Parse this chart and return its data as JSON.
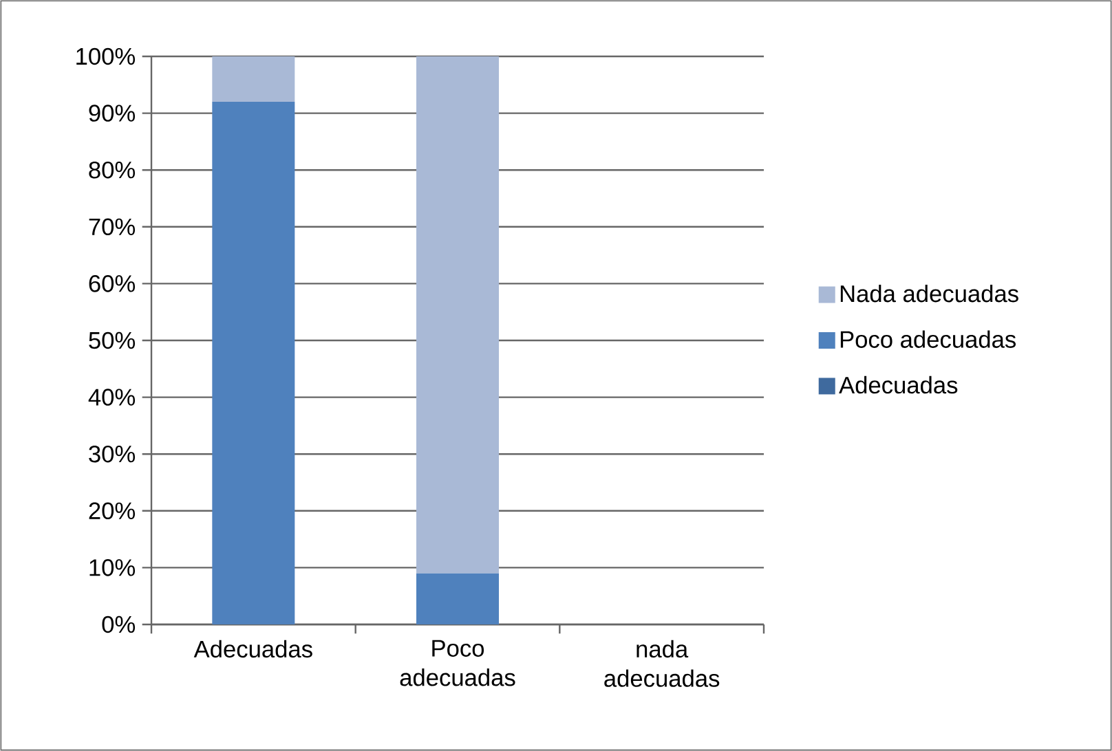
{
  "chart_data": {
    "type": "bar",
    "stacked": true,
    "categories": [
      "Adecuadas",
      "Poco adecuadas",
      "nada adecuadas"
    ],
    "series": [
      {
        "name": "Adecuadas",
        "color": "#3f6a9e",
        "values": [
          0,
          0,
          0
        ]
      },
      {
        "name": "Poco adecuadas",
        "color": "#4f81bd",
        "values": [
          92,
          9,
          0
        ]
      },
      {
        "name": "Nada adecuadas",
        "color": "#a9b9d6",
        "values": [
          8,
          91,
          0
        ]
      }
    ],
    "ylim": [
      0,
      100
    ],
    "yticks": [
      {
        "value": 0,
        "label": "0%"
      },
      {
        "value": 10,
        "label": "10%"
      },
      {
        "value": 20,
        "label": "20%"
      },
      {
        "value": 30,
        "label": "30%"
      },
      {
        "value": 40,
        "label": "40%"
      },
      {
        "value": 50,
        "label": "50%"
      },
      {
        "value": 60,
        "label": "60%"
      },
      {
        "value": 70,
        "label": "70%"
      },
      {
        "value": 80,
        "label": "80%"
      },
      {
        "value": 90,
        "label": "90%"
      },
      {
        "value": 100,
        "label": "100%"
      }
    ],
    "grid": "y",
    "legend": "right"
  }
}
